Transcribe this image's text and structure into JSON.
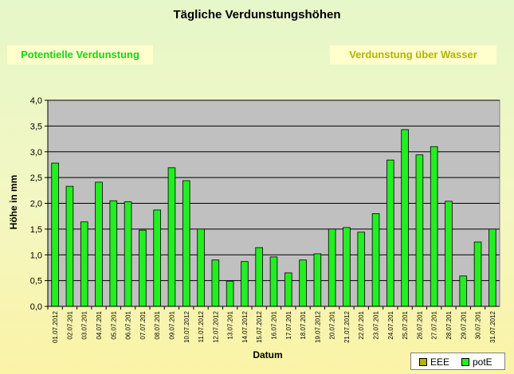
{
  "chart_data": {
    "type": "bar",
    "title": "Tägliche Verdunstungshöhen",
    "xlabel": "Datum",
    "ylabel": "Höhe in mm",
    "ylim": [
      0,
      4
    ],
    "yticks": [
      "0,0",
      "0,5",
      "1,0",
      "1,5",
      "2,0",
      "2,5",
      "3,0",
      "3,5",
      "4,0"
    ],
    "grid": true,
    "legend_position": "bottom-right",
    "categories": [
      "01.07.2012",
      "02.07.201",
      "03.07.201",
      "04.07.201",
      "05.07.201",
      "06.07.201",
      "07.07.201",
      "08.07.201",
      "09.07.201",
      "10.07.2012",
      "11.07.2012",
      "12.07.2012",
      "13.07.201",
      "14.07.2012",
      "15.07.2012",
      "16.07.201",
      "17.07.201",
      "18.07.201",
      "19.07.2012",
      "20.07.201",
      "21.07.2012",
      "22.07.201",
      "23.07.201",
      "24.07.201",
      "25.07.201",
      "26.07.201",
      "27.07.201",
      "28.07.201",
      "29.07.201",
      "30.07.201",
      "31.07.2012"
    ],
    "series": [
      {
        "name": "potE",
        "color": "#22ee22",
        "values": [
          2.78,
          2.33,
          1.64,
          2.41,
          2.05,
          2.03,
          1.48,
          1.87,
          2.69,
          2.44,
          1.5,
          0.9,
          0.49,
          0.87,
          1.14,
          0.96,
          0.65,
          0.9,
          1.02,
          1.5,
          1.53,
          1.44,
          1.8,
          2.84,
          3.43,
          2.94,
          3.1,
          2.04,
          0.59,
          1.25,
          1.5
        ]
      }
    ],
    "legend": [
      {
        "name": "EEE",
        "color": "#b3b300"
      },
      {
        "name": "potE",
        "color": "#22ee22"
      }
    ],
    "annotations": {
      "left": "Potentielle Verdunstung",
      "right": "Verdunstung über Wasser"
    },
    "colors": {
      "plot_background": "#c0c0c0",
      "bar": "#22ee22",
      "bar_border": "#000000"
    }
  }
}
